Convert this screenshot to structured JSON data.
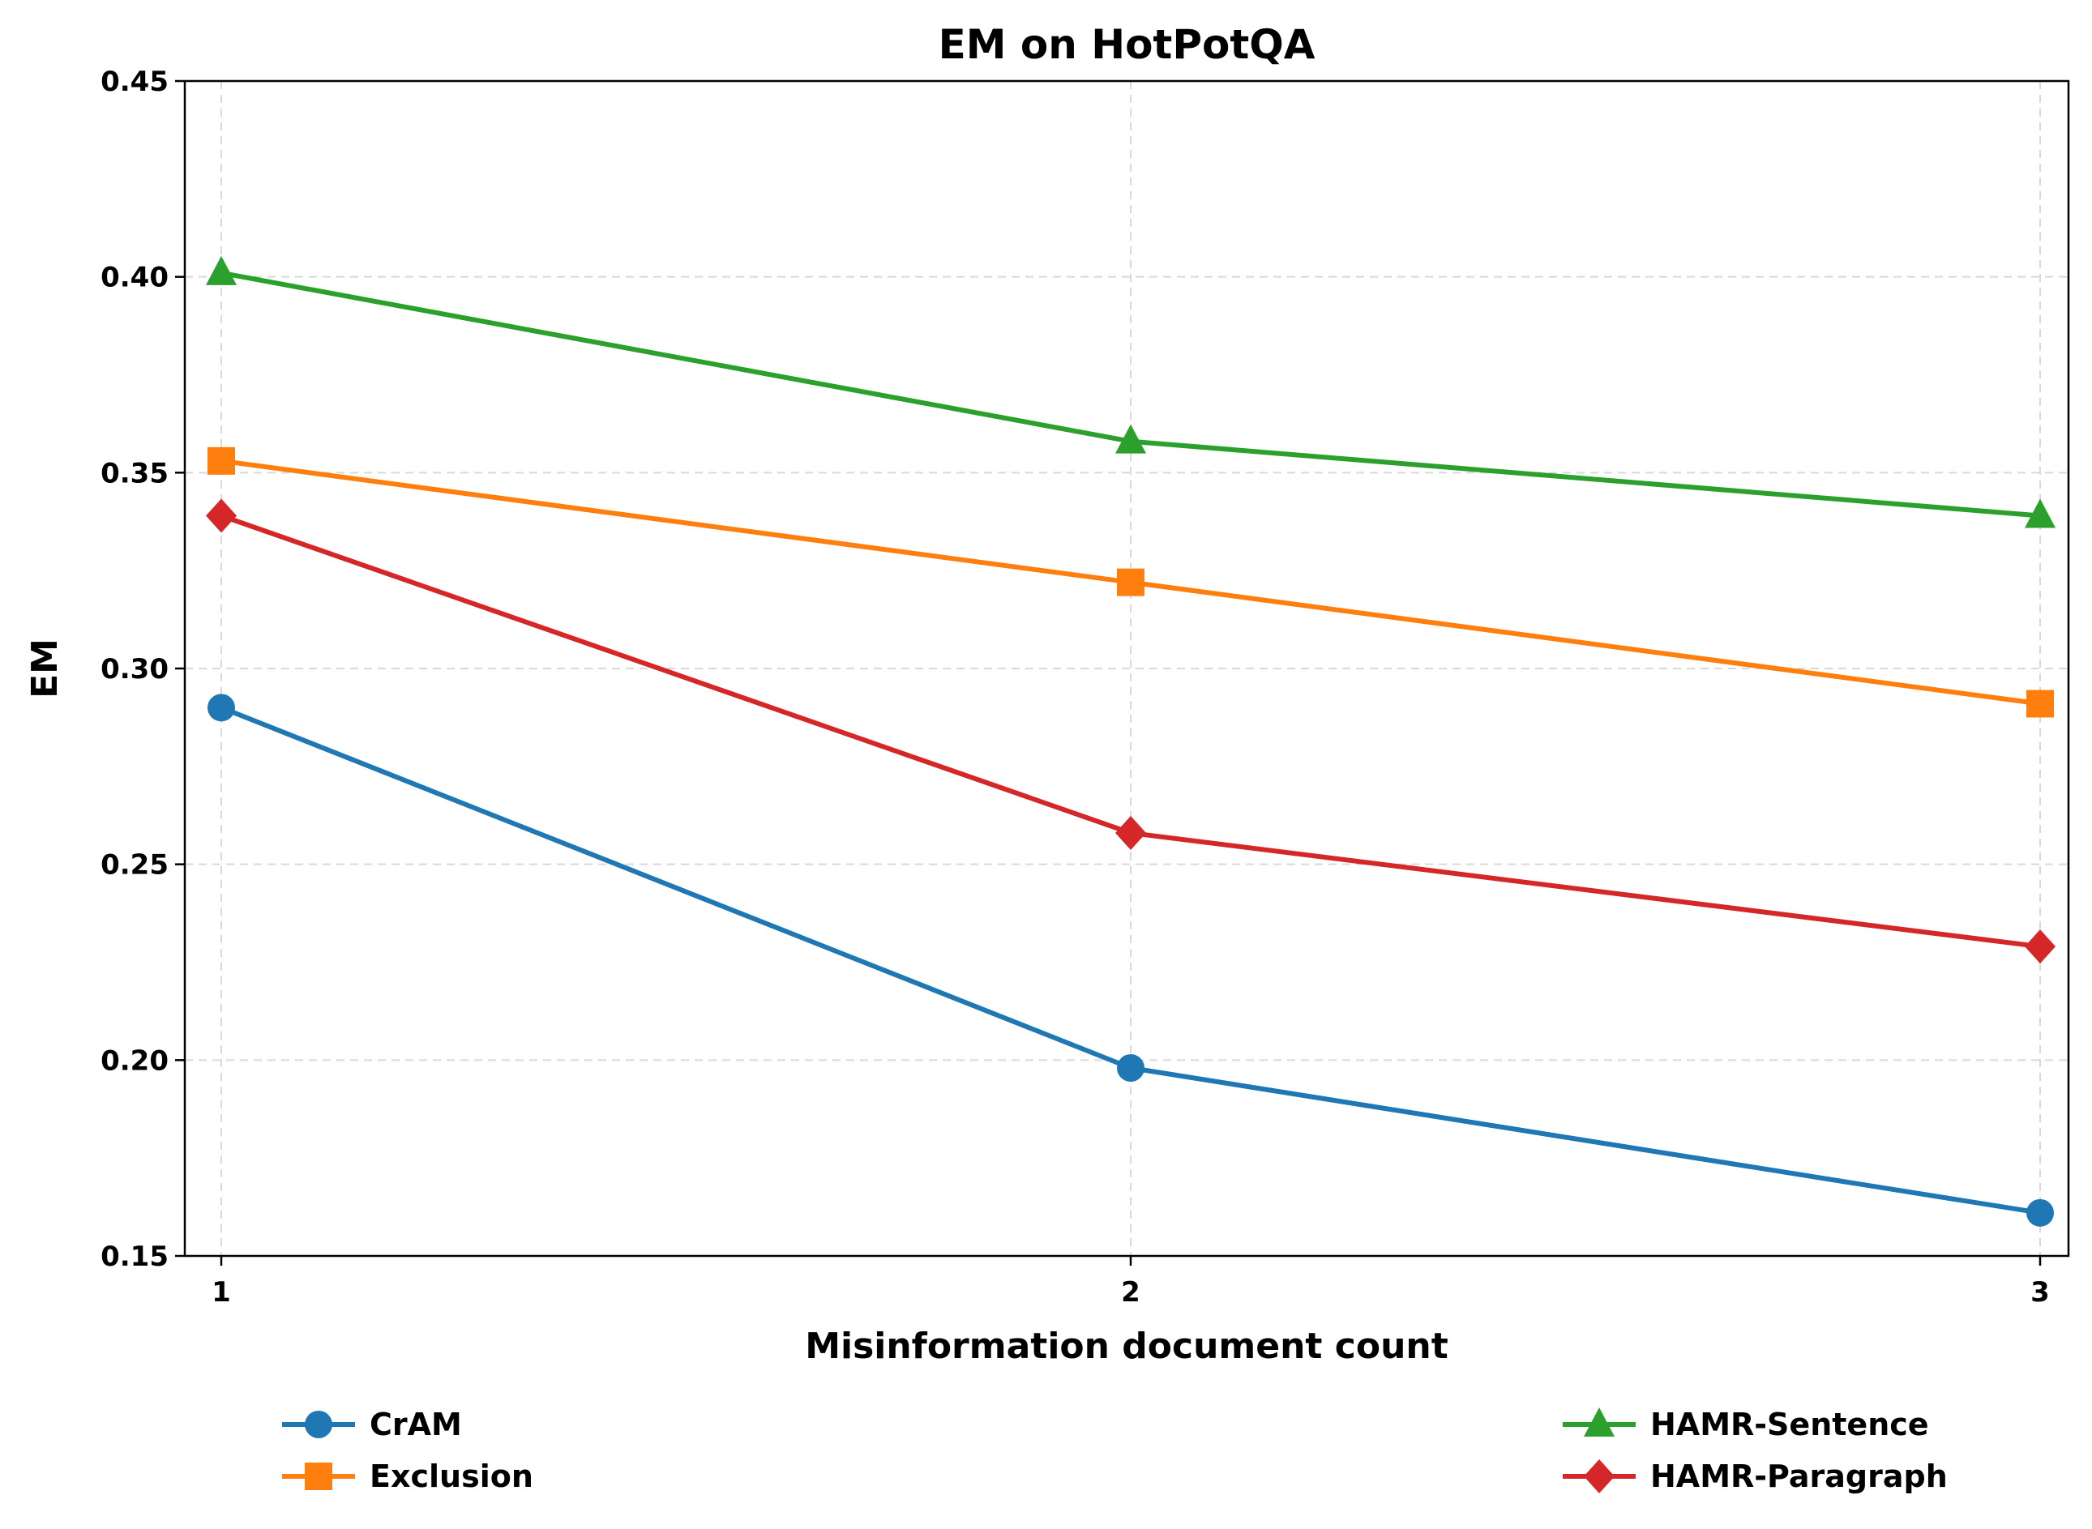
{
  "chart_data": {
    "type": "line",
    "title": "EM on HotPotQA",
    "xlabel": "Misinformation document count",
    "ylabel": "EM",
    "x": [
      1,
      2,
      3
    ],
    "x_ticks": [
      "1",
      "2",
      "3"
    ],
    "ylim": [
      0.15,
      0.45
    ],
    "y_ticks": [
      "0.15",
      "0.20",
      "0.25",
      "0.30",
      "0.35",
      "0.40",
      "0.45"
    ],
    "grid": true,
    "legend_position": "bottom",
    "series": [
      {
        "name": "CrAM",
        "values": [
          0.29,
          0.198,
          0.161
        ],
        "color": "#1f77b4",
        "marker": "circle"
      },
      {
        "name": "Exclusion",
        "values": [
          0.353,
          0.322,
          0.291
        ],
        "color": "#ff7f0e",
        "marker": "square"
      },
      {
        "name": "HAMR-Sentence",
        "values": [
          0.401,
          0.358,
          0.339
        ],
        "color": "#2ca02c",
        "marker": "triangle"
      },
      {
        "name": "HAMR-Paragraph",
        "values": [
          0.339,
          0.258,
          0.229
        ],
        "color": "#d62728",
        "marker": "diamond"
      }
    ]
  }
}
